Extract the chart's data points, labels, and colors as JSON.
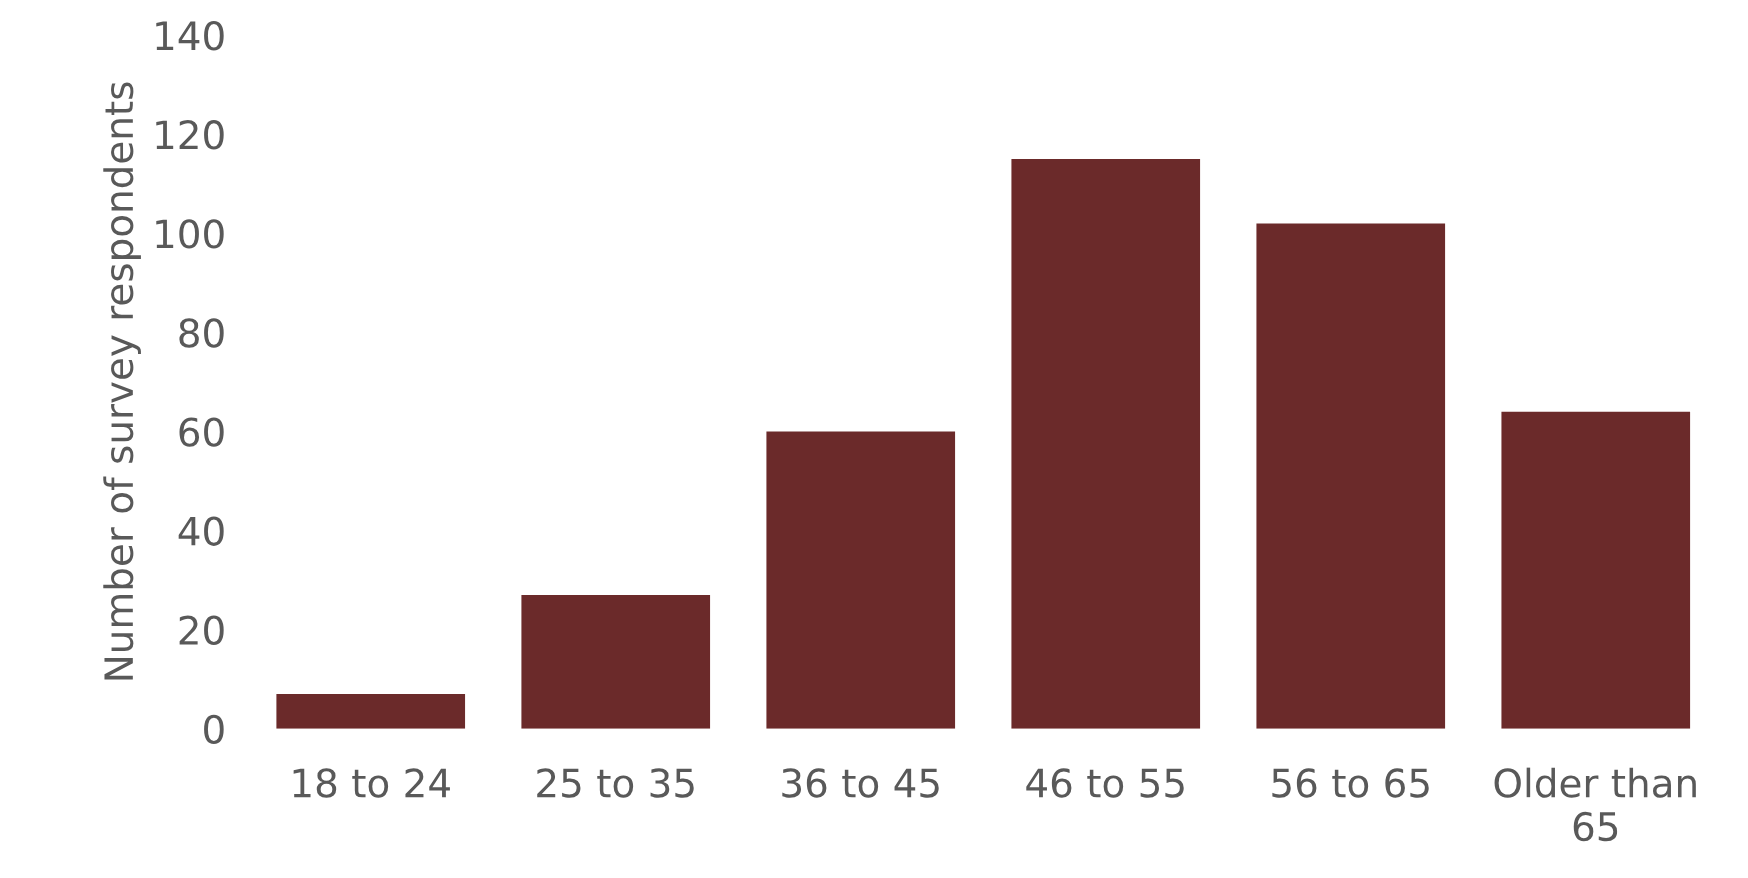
{
  "chart_data": {
    "type": "bar",
    "ylabel": "Number of survey respondents",
    "categories": [
      "18 to 24",
      "25 to 35",
      "36 to 45",
      "46 to 55",
      "56 to 65",
      "Older than\n65"
    ],
    "values": [
      7,
      27,
      60,
      115,
      102,
      64
    ],
    "color": "#6b2a2a",
    "ylim": [
      0,
      140
    ],
    "yticks": [
      0,
      20,
      40,
      60,
      80,
      100,
      120,
      140
    ],
    "grid": false
  }
}
